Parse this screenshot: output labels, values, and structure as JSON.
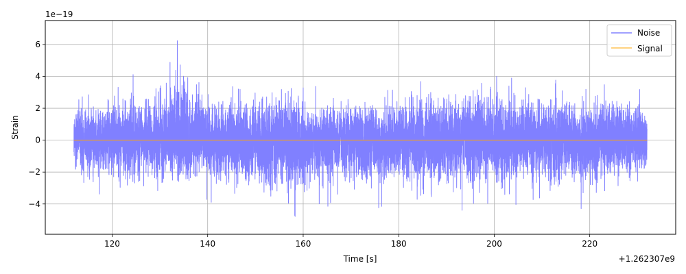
{
  "chart_data": {
    "type": "line",
    "xlabel": "Time [s]",
    "ylabel": "Strain",
    "x_offset_label": "+1.262307e9",
    "y_scale_label": "1e−19",
    "xlim": [
      106,
      238
    ],
    "ylim": [
      -5.9,
      7.5
    ],
    "x_ticks": [
      120,
      140,
      160,
      180,
      200,
      220
    ],
    "x_tick_labels": [
      "120",
      "140",
      "160",
      "180",
      "200",
      "220"
    ],
    "y_ticks": [
      -4,
      -2,
      0,
      2,
      4,
      6
    ],
    "y_tick_labels": [
      "−4",
      "−2",
      "0",
      "2",
      "4",
      "6"
    ],
    "grid": true,
    "legend_position": "top-right",
    "series": [
      {
        "name": "Noise",
        "color": "#8080ff",
        "x_range": [
          112,
          232
        ],
        "envelope": {
          "x": [
            112,
            113,
            120,
            130,
            133,
            141,
            149,
            160.5,
            161,
            178,
            180,
            196,
            201,
            207,
            213,
            222,
            224,
            232
          ],
          "upper": [
            2.9,
            3.6,
            4.1,
            4.3,
            6.8,
            4.0,
            4.2,
            4.6,
            3.5,
            3.8,
            3.9,
            5.3,
            4.3,
            4.1,
            3.8,
            4.3,
            4.8,
            2.8
          ],
          "lower": [
            -2.5,
            -3.7,
            -3.6,
            -4.4,
            -3.9,
            -4.0,
            -4.8,
            -5.3,
            -4.2,
            -4.4,
            -4.3,
            -4.9,
            -4.3,
            -4.1,
            -4.8,
            -4.3,
            -3.7,
            -2.9
          ]
        }
      },
      {
        "name": "Signal",
        "color": "#ffa500",
        "x": [
          112,
          232
        ],
        "y": [
          0,
          0
        ]
      }
    ]
  }
}
